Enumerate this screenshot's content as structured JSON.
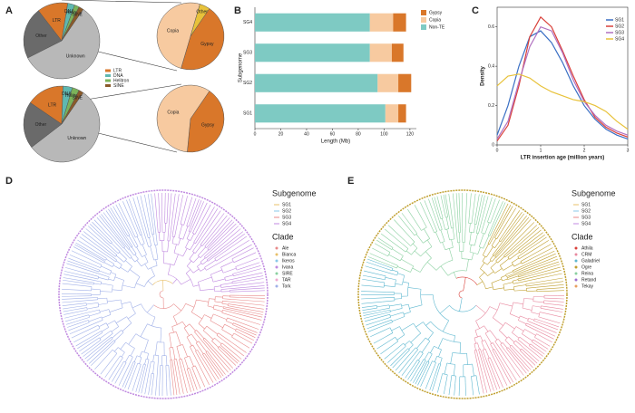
{
  "panels": {
    "labels": [
      "A",
      "B",
      "C",
      "D",
      "E"
    ],
    "trees": [
      {
        "subgenome_title": "Subgenome",
        "subgenomes": [
          "SG1",
          "SG2",
          "SG3",
          "SG4"
        ],
        "clade_title": "Clade",
        "clades": [
          "Ale",
          "Bianca",
          "Ikeros",
          "Ivana",
          "SIRE",
          "TAR",
          "Tork"
        ]
      },
      {
        "subgenome_title": "Subgenome",
        "subgenomes": [
          "SG1",
          "SG2",
          "SG3",
          "SG4"
        ],
        "clade_title": "Clade",
        "clades": [
          "Athila",
          "CRM",
          "Galadriel",
          "Ogre",
          "Reina",
          "Retand",
          "Tekay"
        ]
      }
    ]
  },
  "chart_data": [
    {
      "type": "pie",
      "categories": [
        "Unknown",
        "Other",
        "LTR",
        "DNA",
        "Helitron",
        "SINE"
      ],
      "values": [
        58,
        22,
        13,
        3,
        2,
        2
      ],
      "colors": [
        "#b8b8b8",
        "#6a6a6a",
        "#d9772a",
        "#5fb8b0",
        "#7bb35a",
        "#8a5a2a"
      ]
    },
    {
      "type": "pie",
      "categories": [
        "Gypsy",
        "Copia",
        "Other"
      ],
      "values": [
        45,
        50,
        5
      ],
      "colors": [
        "#d9772a",
        "#f7caa0",
        "#e8c23a"
      ]
    },
    {
      "type": "pie",
      "categories": [
        "Unknown",
        "Other",
        "LTR",
        "DNA",
        "Helitron",
        "SINE"
      ],
      "values": [
        55,
        20,
        16,
        4,
        3,
        2
      ],
      "colors": [
        "#b8b8b8",
        "#6a6a6a",
        "#d9772a",
        "#5fb8b0",
        "#7bb35a",
        "#8a5a2a"
      ]
    },
    {
      "type": "pie",
      "categories": [
        "Gypsy",
        "Copia"
      ],
      "values": [
        42,
        58
      ],
      "colors": [
        "#d9772a",
        "#f7caa0"
      ]
    },
    {
      "type": "bar",
      "stacked": true,
      "orientation": "horizontal",
      "xlabel": "Length (Mb)",
      "ylabel": "Subgenome",
      "categories": [
        "SG4",
        "SG3",
        "SG2",
        "SG1"
      ],
      "series": [
        {
          "name": "Non-TE",
          "color": "#7ecac3",
          "values": [
            89,
            89,
            95,
            101
          ]
        },
        {
          "name": "Copia",
          "color": "#f7caa0",
          "values": [
            18,
            17,
            16,
            10
          ]
        },
        {
          "name": "Gypsy",
          "color": "#d9772a",
          "values": [
            10,
            9,
            10,
            6
          ]
        }
      ],
      "xlim": [
        0,
        125
      ],
      "xticks": [
        0,
        20,
        40,
        60,
        80,
        100,
        120
      ]
    },
    {
      "type": "line",
      "xlabel": "LTR insertion age (million years)",
      "ylabel": "Density",
      "x": [
        0,
        0.25,
        0.5,
        0.75,
        1,
        1.25,
        1.5,
        1.75,
        2,
        2.25,
        2.5,
        2.75,
        3
      ],
      "series": [
        {
          "name": "SG1",
          "color": "#3a6fc4",
          "values": [
            0.05,
            0.2,
            0.4,
            0.55,
            0.58,
            0.52,
            0.42,
            0.3,
            0.2,
            0.13,
            0.08,
            0.05,
            0.03
          ]
        },
        {
          "name": "SG2",
          "color": "#d9403a",
          "values": [
            0.02,
            0.1,
            0.3,
            0.55,
            0.65,
            0.6,
            0.48,
            0.35,
            0.23,
            0.14,
            0.09,
            0.06,
            0.04
          ]
        },
        {
          "name": "SG3",
          "color": "#b070c0",
          "values": [
            0.03,
            0.12,
            0.32,
            0.5,
            0.6,
            0.58,
            0.47,
            0.33,
            0.22,
            0.15,
            0.1,
            0.07,
            0.05
          ]
        },
        {
          "name": "SG4",
          "color": "#e8c23a",
          "values": [
            0.3,
            0.35,
            0.36,
            0.34,
            0.3,
            0.27,
            0.25,
            0.23,
            0.22,
            0.2,
            0.17,
            0.12,
            0.08
          ]
        }
      ],
      "xlim": [
        0,
        3
      ],
      "xticks": [
        0,
        1,
        2,
        3
      ],
      "ylim": [
        0,
        0.7
      ],
      "yticks": [
        0,
        0.2,
        0.4,
        0.6
      ]
    }
  ]
}
